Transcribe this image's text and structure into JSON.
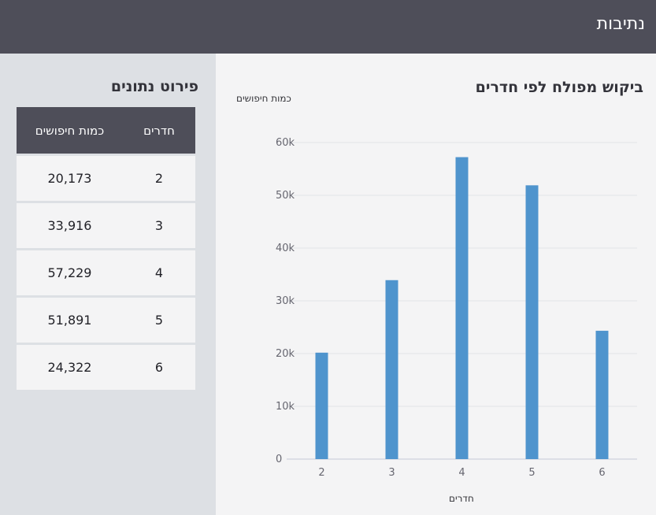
{
  "header": {
    "title": "נתיבות"
  },
  "sidebar": {
    "title": "פירוט נתונים",
    "table": {
      "headers": {
        "rooms": "חדרים",
        "searches": "כמות חיפושים"
      },
      "rows": [
        {
          "rooms": "2",
          "searches": "20,173"
        },
        {
          "rooms": "3",
          "searches": "33,916"
        },
        {
          "rooms": "4",
          "searches": "57,229"
        },
        {
          "rooms": "5",
          "searches": "51,891"
        },
        {
          "rooms": "6",
          "searches": "24,322"
        }
      ]
    }
  },
  "main": {
    "chart_title": "ביקוש מפולח לפי חדרים"
  },
  "chart_data": {
    "type": "bar",
    "title": "ביקוש מפולח לפי חדרים",
    "xlabel": "חדרים",
    "ylabel": "כמות חיפושים",
    "categories": [
      "2",
      "3",
      "4",
      "5",
      "6"
    ],
    "values": [
      20173,
      33916,
      57229,
      51891,
      24322
    ],
    "ylim": [
      0,
      60000
    ],
    "yticks": [
      0,
      10000,
      20000,
      30000,
      40000,
      50000,
      60000
    ],
    "ytick_labels": [
      "0",
      "10k",
      "20k",
      "30k",
      "40k",
      "50k",
      "60k"
    ],
    "grid": true,
    "bar_color": "#4f94cd"
  },
  "colors": {
    "header_bg": "#4e4e59",
    "sidebar_bg": "#dde0e4",
    "page_bg": "#f4f4f5",
    "bar": "#4f94cd"
  }
}
